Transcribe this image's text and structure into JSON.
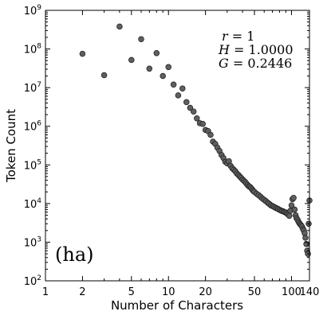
{
  "chart_data": {
    "type": "scatter",
    "xlabel": "Number of Characters",
    "ylabel": "Token Count",
    "x_scale": "log",
    "y_scale": "log",
    "xlim": [
      1,
      140
    ],
    "ylim": [
      100,
      1000000000
    ],
    "x_ticks": [
      {
        "value": 1,
        "label": "1"
      },
      {
        "value": 2,
        "label": "2"
      },
      {
        "value": 5,
        "label": "5"
      },
      {
        "value": 10,
        "label": "10"
      },
      {
        "value": 20,
        "label": "20"
      },
      {
        "value": 50,
        "label": "50"
      },
      {
        "value": 100,
        "label": "100"
      },
      {
        "value": 140,
        "label": "140"
      }
    ],
    "y_ticks": [
      {
        "value": 100,
        "base": "10",
        "exp": "2"
      },
      {
        "value": 1000,
        "base": "10",
        "exp": "3"
      },
      {
        "value": 10000,
        "base": "10",
        "exp": "4"
      },
      {
        "value": 100000,
        "base": "10",
        "exp": "5"
      },
      {
        "value": 1000000,
        "base": "10",
        "exp": "6"
      },
      {
        "value": 10000000,
        "base": "10",
        "exp": "7"
      },
      {
        "value": 100000000,
        "base": "10",
        "exp": "8"
      },
      {
        "value": 1000000000,
        "base": "10",
        "exp": "9"
      }
    ],
    "grid": false,
    "marker_color": "#5f5f5f",
    "annotation": {
      "r_label": "r",
      "r_value": " = 1",
      "h_label": "H",
      "h_value": " = 1.0000",
      "g_label": "G",
      "g_value": " = 0.2446"
    },
    "panel_label": "(ha)",
    "series": [
      {
        "points": [
          [
            2,
            75000000
          ],
          [
            3,
            21000000
          ],
          [
            4,
            380000000
          ],
          [
            5,
            52000000
          ],
          [
            6,
            180000000
          ],
          [
            7,
            31000000
          ],
          [
            8,
            78000000
          ],
          [
            9,
            20000000
          ],
          [
            10,
            34000000
          ],
          [
            11,
            12000000
          ],
          [
            12,
            6300000
          ],
          [
            13,
            9500000
          ],
          [
            14,
            4200000
          ],
          [
            15,
            3000000
          ],
          [
            16,
            2400000
          ],
          [
            17,
            1600000
          ],
          [
            18,
            1200000
          ],
          [
            19,
            1150000
          ],
          [
            20,
            800000
          ],
          [
            21,
            750000
          ],
          [
            22,
            600000
          ],
          [
            23,
            400000
          ],
          [
            24,
            350000
          ],
          [
            25,
            280000
          ],
          [
            26,
            230000
          ],
          [
            27,
            180000
          ],
          [
            28,
            150000
          ],
          [
            29,
            120000
          ],
          [
            30,
            110000
          ],
          [
            31,
            125000
          ],
          [
            32,
            95000
          ],
          [
            33,
            82000
          ],
          [
            34,
            75000
          ],
          [
            35,
            68000
          ],
          [
            36,
            60000
          ],
          [
            37,
            55000
          ],
          [
            38,
            50000
          ],
          [
            39,
            46000
          ],
          [
            40,
            42000
          ],
          [
            41,
            39000
          ],
          [
            42,
            36000
          ],
          [
            43,
            33000
          ],
          [
            44,
            30000
          ],
          [
            45,
            28000
          ],
          [
            46,
            27000
          ],
          [
            47,
            25000
          ],
          [
            48,
            23000
          ],
          [
            49,
            21000
          ],
          [
            50,
            20000
          ],
          [
            52,
            18000
          ],
          [
            54,
            16500
          ],
          [
            56,
            15000
          ],
          [
            58,
            13500
          ],
          [
            60,
            12500
          ],
          [
            62,
            11500
          ],
          [
            64,
            10500
          ],
          [
            66,
            9800
          ],
          [
            68,
            9000
          ],
          [
            70,
            8600
          ],
          [
            72,
            8200
          ],
          [
            74,
            7800
          ],
          [
            76,
            7500
          ],
          [
            78,
            7200
          ],
          [
            80,
            6900
          ],
          [
            82,
            6600
          ],
          [
            84,
            6400
          ],
          [
            86,
            6200
          ],
          [
            88,
            6000
          ],
          [
            90,
            5800
          ],
          [
            92,
            5500
          ],
          [
            94,
            5200
          ],
          [
            96,
            4800
          ],
          [
            98,
            6500
          ],
          [
            100,
            9000
          ],
          [
            102,
            13000
          ],
          [
            104,
            14000
          ],
          [
            106,
            7000
          ],
          [
            108,
            5000
          ],
          [
            110,
            4200
          ],
          [
            112,
            3800
          ],
          [
            114,
            3400
          ],
          [
            116,
            3100
          ],
          [
            118,
            2900
          ],
          [
            120,
            2700
          ],
          [
            122,
            2500
          ],
          [
            124,
            2200
          ],
          [
            126,
            2000
          ],
          [
            128,
            1700
          ],
          [
            130,
            1300
          ],
          [
            132,
            900
          ],
          [
            134,
            600
          ],
          [
            136,
            500
          ],
          [
            138,
            3000
          ],
          [
            140,
            12000
          ]
        ]
      }
    ]
  }
}
